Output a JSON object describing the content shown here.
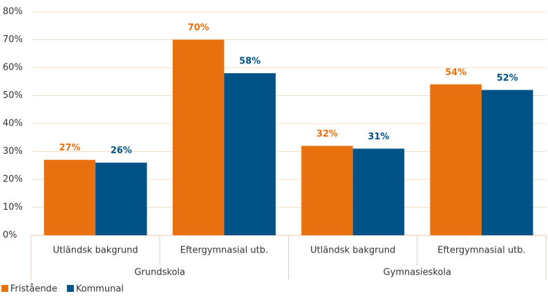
{
  "chart_data": {
    "type": "bar",
    "groups": [
      {
        "label": "Grundskola",
        "categories": [
          "Utländsk bakgrund",
          "Eftergymnasial utb."
        ]
      },
      {
        "label": "Gymnasieskola",
        "categories": [
          "Utländsk bakgrund",
          "Eftergymnasial utb."
        ]
      }
    ],
    "series": [
      {
        "name": "Fristående",
        "color": "#e8700f",
        "values": [
          27,
          70,
          32,
          54
        ],
        "value_labels": [
          "27%",
          "70%",
          "32%",
          "54%"
        ]
      },
      {
        "name": "Kommunal",
        "color": "#005287",
        "values": [
          26,
          58,
          31,
          52
        ],
        "value_labels": [
          "26%",
          "58%",
          "31%",
          "52%"
        ]
      }
    ],
    "ylim": [
      0,
      80
    ],
    "yticks": [
      {
        "value": 0,
        "label": "0%"
      },
      {
        "value": 10,
        "label": "10%"
      },
      {
        "value": 20,
        "label": "20%"
      },
      {
        "value": 30,
        "label": "30%"
      },
      {
        "value": 40,
        "label": "40%"
      },
      {
        "value": 50,
        "label": "50%"
      },
      {
        "value": 60,
        "label": "60%"
      },
      {
        "value": 70,
        "label": "70%"
      },
      {
        "value": 80,
        "label": "80%"
      }
    ],
    "grid": true,
    "legend": "bottom-left"
  }
}
